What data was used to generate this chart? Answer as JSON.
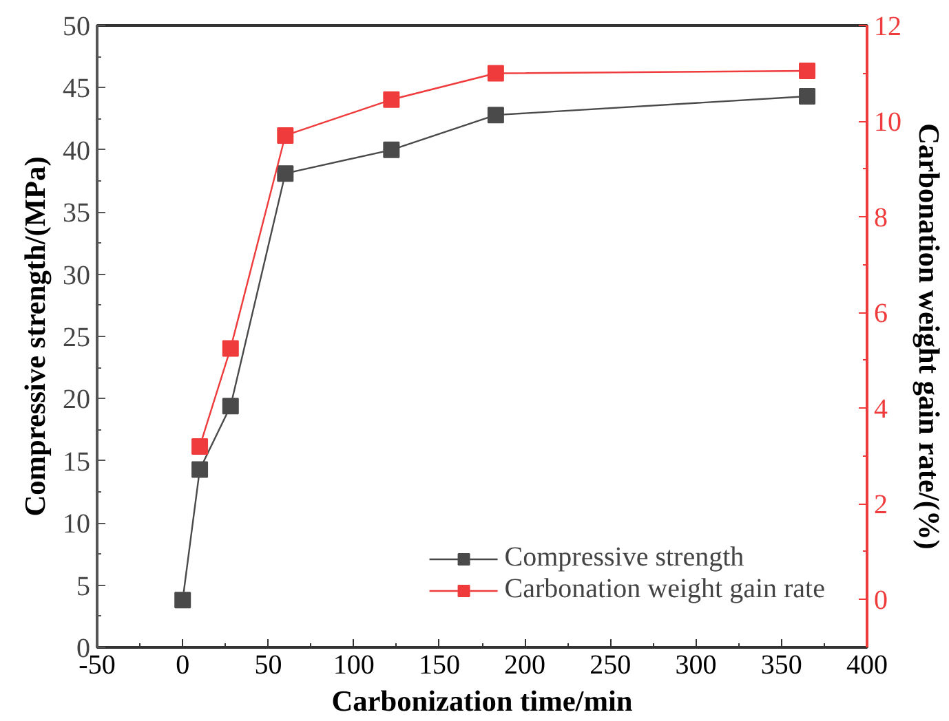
{
  "chart_data": {
    "type": "line",
    "xlabel": "Carbonization time/min",
    "ylabel": "Compressive strength/(MPa)",
    "y2label": "Carbonation weight gain rate/(%)",
    "series": [
      {
        "name": "Compressive strength",
        "color": "#4a4a4a",
        "x": [
          0,
          10,
          28,
          60,
          122,
          183,
          365
        ],
        "values": [
          3.8,
          14.3,
          19.4,
          38.1,
          40.0,
          42.8,
          44.3
        ]
      },
      {
        "name": "Carbonation weight gain rate",
        "color": "#ef3b3b",
        "axis": "y2",
        "x": [
          10,
          28,
          60,
          122,
          183,
          365
        ],
        "values": [
          3.2,
          5.25,
          9.7,
          10.45,
          11.0,
          11.05
        ]
      }
    ],
    "xlim": [
      -50,
      400
    ],
    "xticks": [
      -50,
      0,
      50,
      100,
      150,
      200,
      250,
      300,
      350,
      400
    ],
    "ylim": [
      0,
      50
    ],
    "yticks": [
      0,
      5,
      10,
      15,
      20,
      25,
      30,
      35,
      40,
      45,
      50
    ],
    "y2lim": [
      -1,
      12
    ],
    "y2ticks": [
      0,
      2,
      4,
      6,
      8,
      10,
      12
    ],
    "marker": "square",
    "line_style": "solid",
    "grid": false,
    "legend": "bottom right"
  }
}
